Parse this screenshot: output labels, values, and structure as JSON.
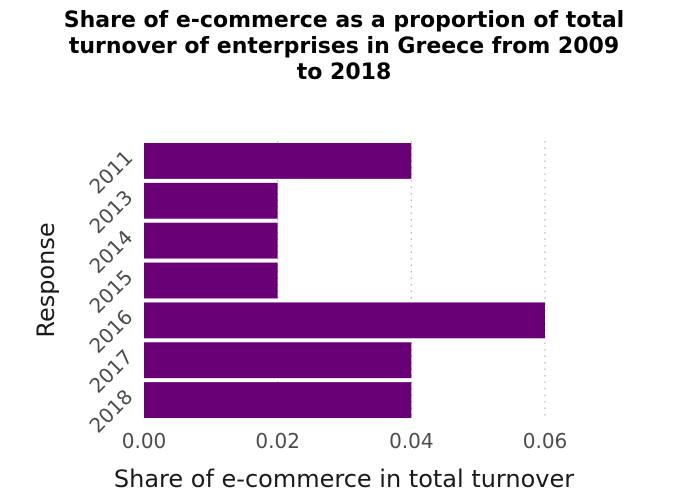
{
  "chart_data": {
    "type": "bar",
    "orientation": "horizontal",
    "title": "Share of e-commerce as a proportion of total\nturnover of enterprises in Greece from 2009\nto 2018",
    "xlabel": "Share of e-commerce in total turnover",
    "ylabel": "Response",
    "categories": [
      "2011",
      "2013",
      "2014",
      "2015",
      "2016",
      "2017",
      "2018"
    ],
    "values": [
      0.04,
      0.02,
      0.02,
      0.02,
      0.06,
      0.04,
      0.04
    ],
    "xlim": [
      0,
      0.06
    ],
    "xticks": [
      0,
      0.02,
      0.04,
      0.06
    ],
    "xtick_labels": [
      "0.00",
      "0.02",
      "0.04",
      "0.06"
    ],
    "grid": "vertical dotted",
    "bar_color": "#6a0076",
    "grid_color": "#b3b3b3"
  }
}
